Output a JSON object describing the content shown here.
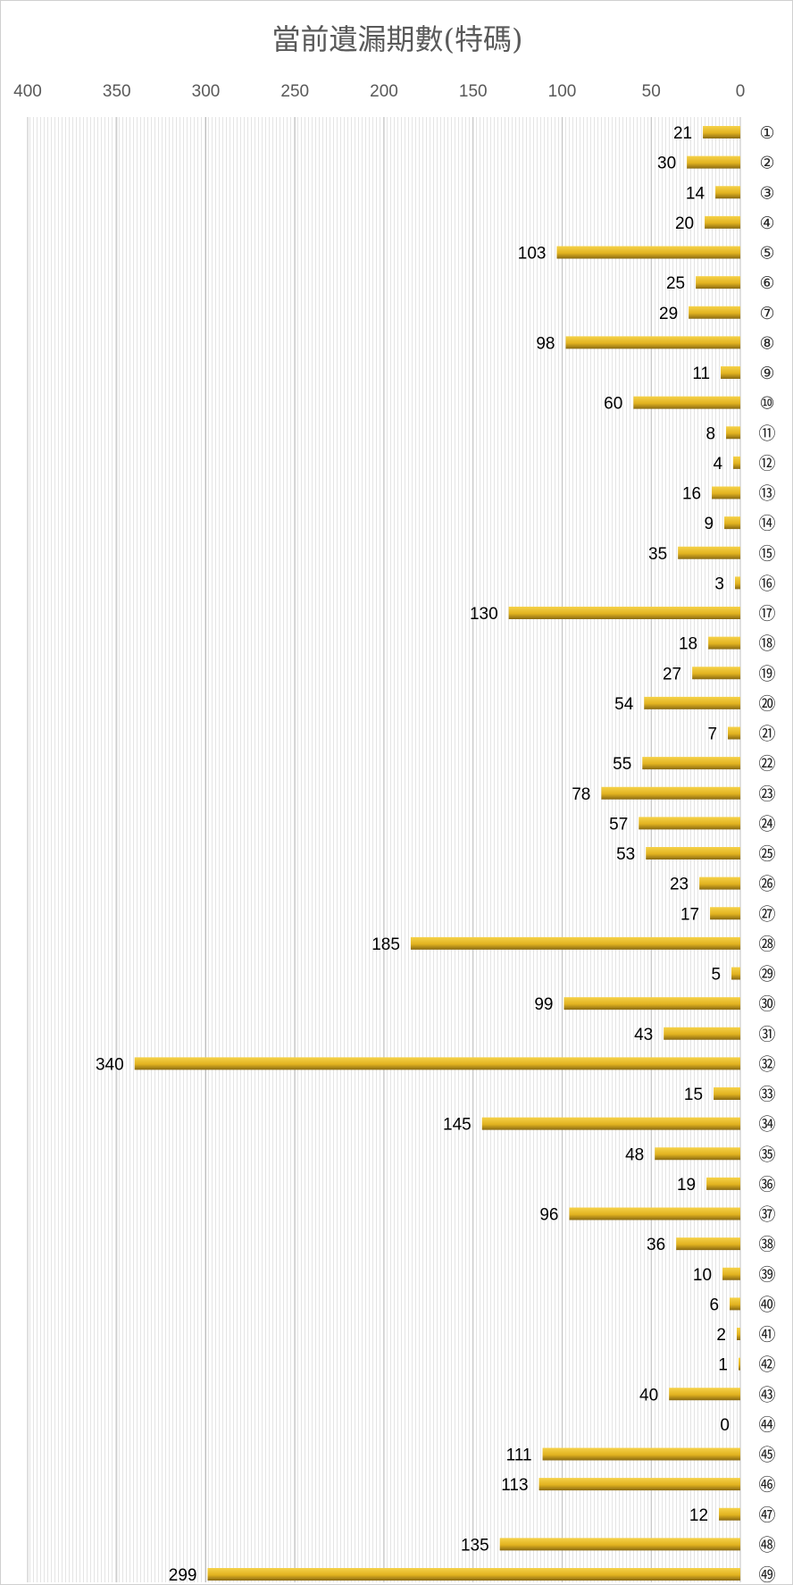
{
  "chart_data": {
    "type": "bar",
    "orientation": "horizontal",
    "title": "當前遺漏期數(特碼)",
    "xlim": [
      0,
      400
    ],
    "x_reversed": true,
    "x_ticks": [
      400,
      350,
      300,
      250,
      200,
      150,
      100,
      50,
      0
    ],
    "grid": true,
    "bar_color": "#e6b422",
    "categories": [
      "①",
      "②",
      "③",
      "④",
      "⑤",
      "⑥",
      "⑦",
      "⑧",
      "⑨",
      "⑩",
      "⑪",
      "⑫",
      "⑬",
      "⑭",
      "⑮",
      "⑯",
      "⑰",
      "⑱",
      "⑲",
      "⑳",
      "㉑",
      "㉒",
      "㉓",
      "㉔",
      "㉕",
      "㉖",
      "㉗",
      "㉘",
      "㉙",
      "㉚",
      "㉛",
      "㉜",
      "㉝",
      "㉞",
      "㉟",
      "㊱",
      "㊲",
      "㊳",
      "㊴",
      "㊵",
      "㊶",
      "㊷",
      "㊸",
      "㊹",
      "㊺",
      "㊻",
      "㊼",
      "㊽",
      "㊾"
    ],
    "values": [
      21,
      30,
      14,
      20,
      103,
      25,
      29,
      98,
      11,
      60,
      8,
      4,
      16,
      9,
      35,
      3,
      130,
      18,
      27,
      54,
      7,
      55,
      78,
      57,
      53,
      23,
      17,
      185,
      5,
      99,
      43,
      340,
      15,
      145,
      48,
      19,
      96,
      36,
      10,
      6,
      2,
      1,
      40,
      0,
      111,
      113,
      12,
      135,
      299
    ]
  }
}
